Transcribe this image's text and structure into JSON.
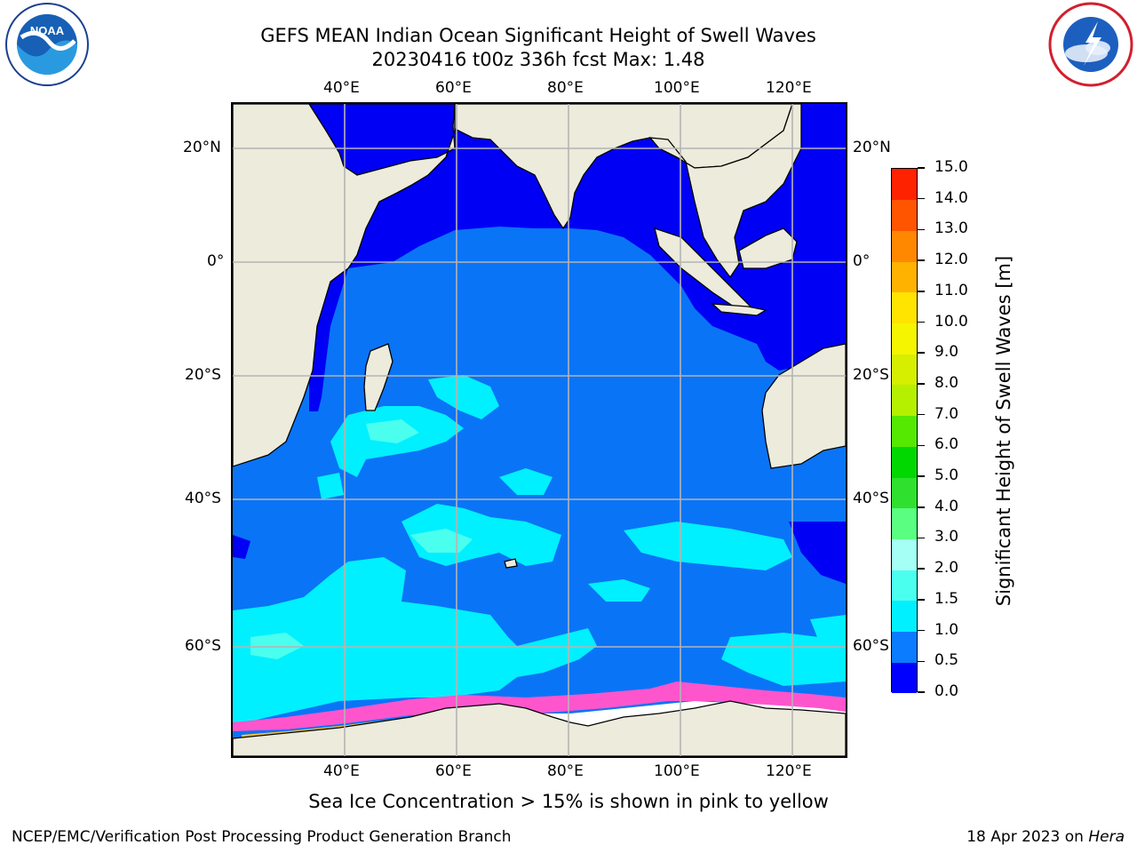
{
  "title_line1": "GEFS MEAN Indian Ocean Significant Height of Swell Waves",
  "title_line2": "20230416 t00z 336h fcst   Max: 1.48",
  "logos": {
    "left": {
      "name": "NOAA",
      "text": "NOAA",
      "ring_text": "NATIONAL OCEANIC AND ATMOSPHERIC ADMINISTRATION · U.S. DEPARTMENT OF COMMERCE"
    },
    "right": {
      "name": "National Weather Service",
      "ring_text": "NATIONAL WEATHER SERVICE"
    }
  },
  "map": {
    "lon_ticks": [
      "40°E",
      "60°E",
      "80°E",
      "100°E",
      "120°E"
    ],
    "lat_ticks": [
      "20°N",
      "0°",
      "20°S",
      "40°S",
      "60°S"
    ],
    "colors": {
      "land": "#ecebdc",
      "ocean_base": "#0a74f7",
      "grid": "#b4b4b4"
    }
  },
  "colorbar": {
    "title": "Significant Height of Swell Waves [m]",
    "labels": [
      "0.0",
      "0.5",
      "1.0",
      "1.5",
      "2.0",
      "3.0",
      "4.0",
      "5.0",
      "6.0",
      "7.0",
      "8.0",
      "9.0",
      "10.0",
      "11.0",
      "12.0",
      "13.0",
      "14.0",
      "15.0"
    ],
    "colors": [
      "#0000ff",
      "#0b7bff",
      "#00f0ff",
      "#4bffee",
      "#a5fff4",
      "#5aff82",
      "#2fe02f",
      "#00d800",
      "#55e800",
      "#b4f000",
      "#d6ee00",
      "#f5f500",
      "#ffe400",
      "#ffb300",
      "#ff8800",
      "#ff5500",
      "#ff2200"
    ]
  },
  "caption": "Sea Ice Concentration > 15% is shown in pink to yellow",
  "footer_left": "NCEP/EMC/Verification Post Processing Product Generation Branch",
  "footer_right_date": "18 Apr 2023 on",
  "footer_right_host": "Hera"
}
